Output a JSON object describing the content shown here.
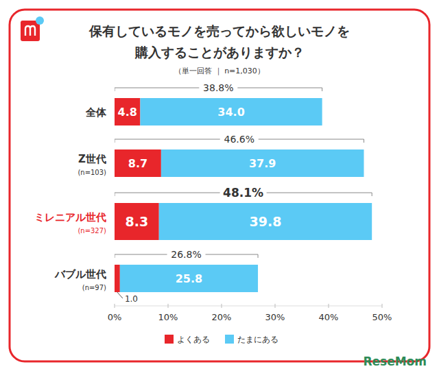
{
  "chart_data": {
    "type": "bar",
    "orientation": "horizontal",
    "stacked": true,
    "data_labels": true,
    "title": "保有しているモノを売ってから欲しいモノを購入することがありますか？",
    "title_lines": [
      "保有しているモノを売ってから欲しいモノを",
      "購入することがありますか？"
    ],
    "subtitle": "（単一回答 ｜ n=1,030）",
    "categories": [
      "全体",
      "Z世代",
      "ミレニアル世代",
      "バブル世代"
    ],
    "category_notes": [
      null,
      "(n=103)",
      "(n=327)",
      "(n=97)"
    ],
    "series": [
      {
        "name": "よくある",
        "color": "#e8262b",
        "values": [
          4.8,
          8.7,
          8.3,
          1.0
        ],
        "value_labels": [
          "4.8",
          "8.7",
          "8.3",
          "1.0"
        ]
      },
      {
        "name": "たまにある",
        "color": "#5bcaf5",
        "values": [
          34.0,
          37.9,
          39.8,
          25.8
        ],
        "value_labels": [
          "34.0",
          "37.9",
          "39.8",
          "25.8"
        ]
      }
    ],
    "totals": [
      38.8,
      46.6,
      48.1,
      26.8
    ],
    "total_labels": [
      "38.8%",
      "46.6%",
      "48.1%",
      "26.8%"
    ],
    "xlim": [
      0,
      50
    ],
    "xticks": [
      {
        "value": 0,
        "label": "0%"
      },
      {
        "value": 10,
        "label": "10%"
      },
      {
        "value": 20,
        "label": "20%"
      },
      {
        "value": 30,
        "label": "30%"
      },
      {
        "value": 40,
        "label": "40%"
      },
      {
        "value": 50,
        "label": "50%"
      }
    ],
    "legend": "bottom",
    "grid": false,
    "watermark": "ReseMom"
  }
}
